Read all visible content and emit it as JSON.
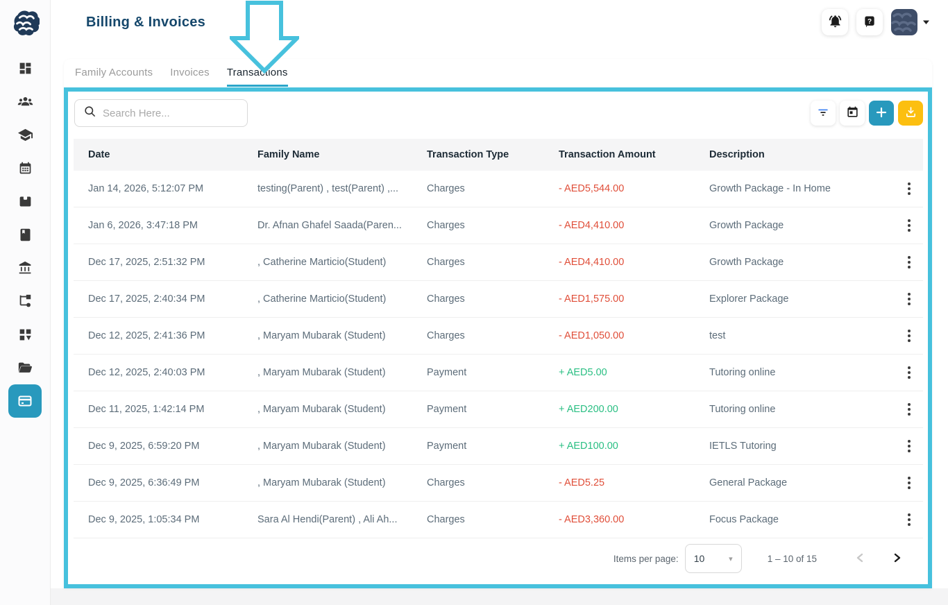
{
  "page": {
    "title": "Billing & Invoices"
  },
  "header": {
    "icons": [
      "notifications-bell",
      "help-question",
      "avatar-menu"
    ]
  },
  "tabs": {
    "items": [
      {
        "label": "Family Accounts",
        "active": false
      },
      {
        "label": "Invoices",
        "active": false
      },
      {
        "label": "Transactions",
        "active": true
      }
    ]
  },
  "toolbar": {
    "search_placeholder": "Search Here...",
    "buttons": [
      "filter",
      "date-range",
      "add-transaction",
      "export-download"
    ]
  },
  "table": {
    "columns": [
      "Date",
      "Family Name",
      "Transaction Type",
      "Transaction Amount",
      "Description"
    ],
    "rows": [
      {
        "date": "Jan 14, 2026, 5:12:07 PM",
        "family_name": "testing(Parent) , test(Parent) ,...",
        "transaction_type": "Charges",
        "amount": "- AED5,544.00",
        "direction": "debit",
        "description": "Growth Package - In Home"
      },
      {
        "date": "Jan 6, 2026, 3:47:18 PM",
        "family_name": "Dr. Afnan Ghafel Saada(Paren...",
        "transaction_type": "Charges",
        "amount": "- AED4,410.00",
        "direction": "debit",
        "description": "Growth Package"
      },
      {
        "date": "Dec 17, 2025, 2:51:32 PM",
        "family_name": ", Catherine Marticio(Student)",
        "transaction_type": "Charges",
        "amount": "- AED4,410.00",
        "direction": "debit",
        "description": "Growth Package"
      },
      {
        "date": "Dec 17, 2025, 2:40:34 PM",
        "family_name": ", Catherine Marticio(Student)",
        "transaction_type": "Charges",
        "amount": "- AED1,575.00",
        "direction": "debit",
        "description": "Explorer Package"
      },
      {
        "date": "Dec 12, 2025, 2:41:36 PM",
        "family_name": ", Maryam Mubarak (Student)",
        "transaction_type": "Charges",
        "amount": "- AED1,050.00",
        "direction": "debit",
        "description": "test"
      },
      {
        "date": "Dec 12, 2025, 2:40:03 PM",
        "family_name": ", Maryam Mubarak (Student)",
        "transaction_type": "Payment",
        "amount": "+ AED5.00",
        "direction": "credit",
        "description": "Tutoring online"
      },
      {
        "date": "Dec 11, 2025, 1:42:14 PM",
        "family_name": ", Maryam Mubarak (Student)",
        "transaction_type": "Payment",
        "amount": "+ AED200.00",
        "direction": "credit",
        "description": "Tutoring online"
      },
      {
        "date": "Dec 9, 2025, 6:59:20 PM",
        "family_name": ", Maryam Mubarak (Student)",
        "transaction_type": "Payment",
        "amount": "+ AED100.00",
        "direction": "credit",
        "description": "IETLS Tutoring"
      },
      {
        "date": "Dec 9, 2025, 6:36:49 PM",
        "family_name": ", Maryam Mubarak (Student)",
        "transaction_type": "Charges",
        "amount": "- AED5.25",
        "direction": "debit",
        "description": "General Package"
      },
      {
        "date": "Dec 9, 2025, 1:05:34 PM",
        "family_name": "Sara Al Hendi(Parent) , Ali Ah...",
        "transaction_type": "Charges",
        "amount": "- AED3,360.00",
        "direction": "debit",
        "description": "Focus Package"
      }
    ]
  },
  "pagination": {
    "items_per_page_label": "Items per page:",
    "page_size": "10",
    "range": "1 – 10 of 15"
  },
  "colors": {
    "accent_teal": "#2899bd",
    "accent_amber": "#fcbf10",
    "annotation_cyan": "#47c1dd",
    "tab_underline": "#2ba6ca",
    "title_navy": "#15476b",
    "negative_amount": "#e04e39",
    "positive_amount": "#2abf83"
  }
}
